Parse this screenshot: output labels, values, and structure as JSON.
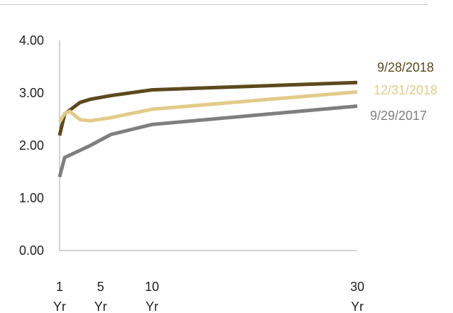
{
  "chart_data": {
    "type": "line",
    "title": "",
    "xlabel": "",
    "ylabel": "",
    "ylim": [
      0,
      4
    ],
    "y_ticks": [
      "4.00",
      "3.00",
      "2.00",
      "1.00",
      "0.00"
    ],
    "x_tick_labels": [
      {
        "x": 1,
        "top": "1",
        "bottom": "Yr"
      },
      {
        "x": 5,
        "top": "5",
        "bottom": "Yr"
      },
      {
        "x": 10,
        "top": "10",
        "bottom": "Yr"
      },
      {
        "x": 30,
        "top": "30",
        "bottom": "Yr"
      }
    ],
    "grid": false,
    "legend": "labels at right end of each line",
    "series": [
      {
        "name": "9/28/2018",
        "color": "#5c4a1e",
        "points": [
          [
            1,
            2.19
          ],
          [
            1.5,
            2.6
          ],
          [
            3,
            2.82
          ],
          [
            4,
            2.88
          ],
          [
            6,
            2.95
          ],
          [
            10,
            3.06
          ],
          [
            30,
            3.2
          ]
        ]
      },
      {
        "name": "12/31/2018",
        "color": "#e2cb8a",
        "points": [
          [
            1,
            2.45
          ],
          [
            1.5,
            2.61
          ],
          [
            2,
            2.65
          ],
          [
            3,
            2.49
          ],
          [
            4,
            2.47
          ],
          [
            6,
            2.53
          ],
          [
            10,
            2.69
          ],
          [
            30,
            3.02
          ]
        ]
      },
      {
        "name": "9/29/2017",
        "color": "#7f7f7f",
        "points": [
          [
            1,
            1.4
          ],
          [
            1.5,
            1.77
          ],
          [
            3,
            1.91
          ],
          [
            4,
            2.0
          ],
          [
            6,
            2.21
          ],
          [
            10,
            2.4
          ],
          [
            30,
            2.75
          ]
        ]
      }
    ]
  }
}
